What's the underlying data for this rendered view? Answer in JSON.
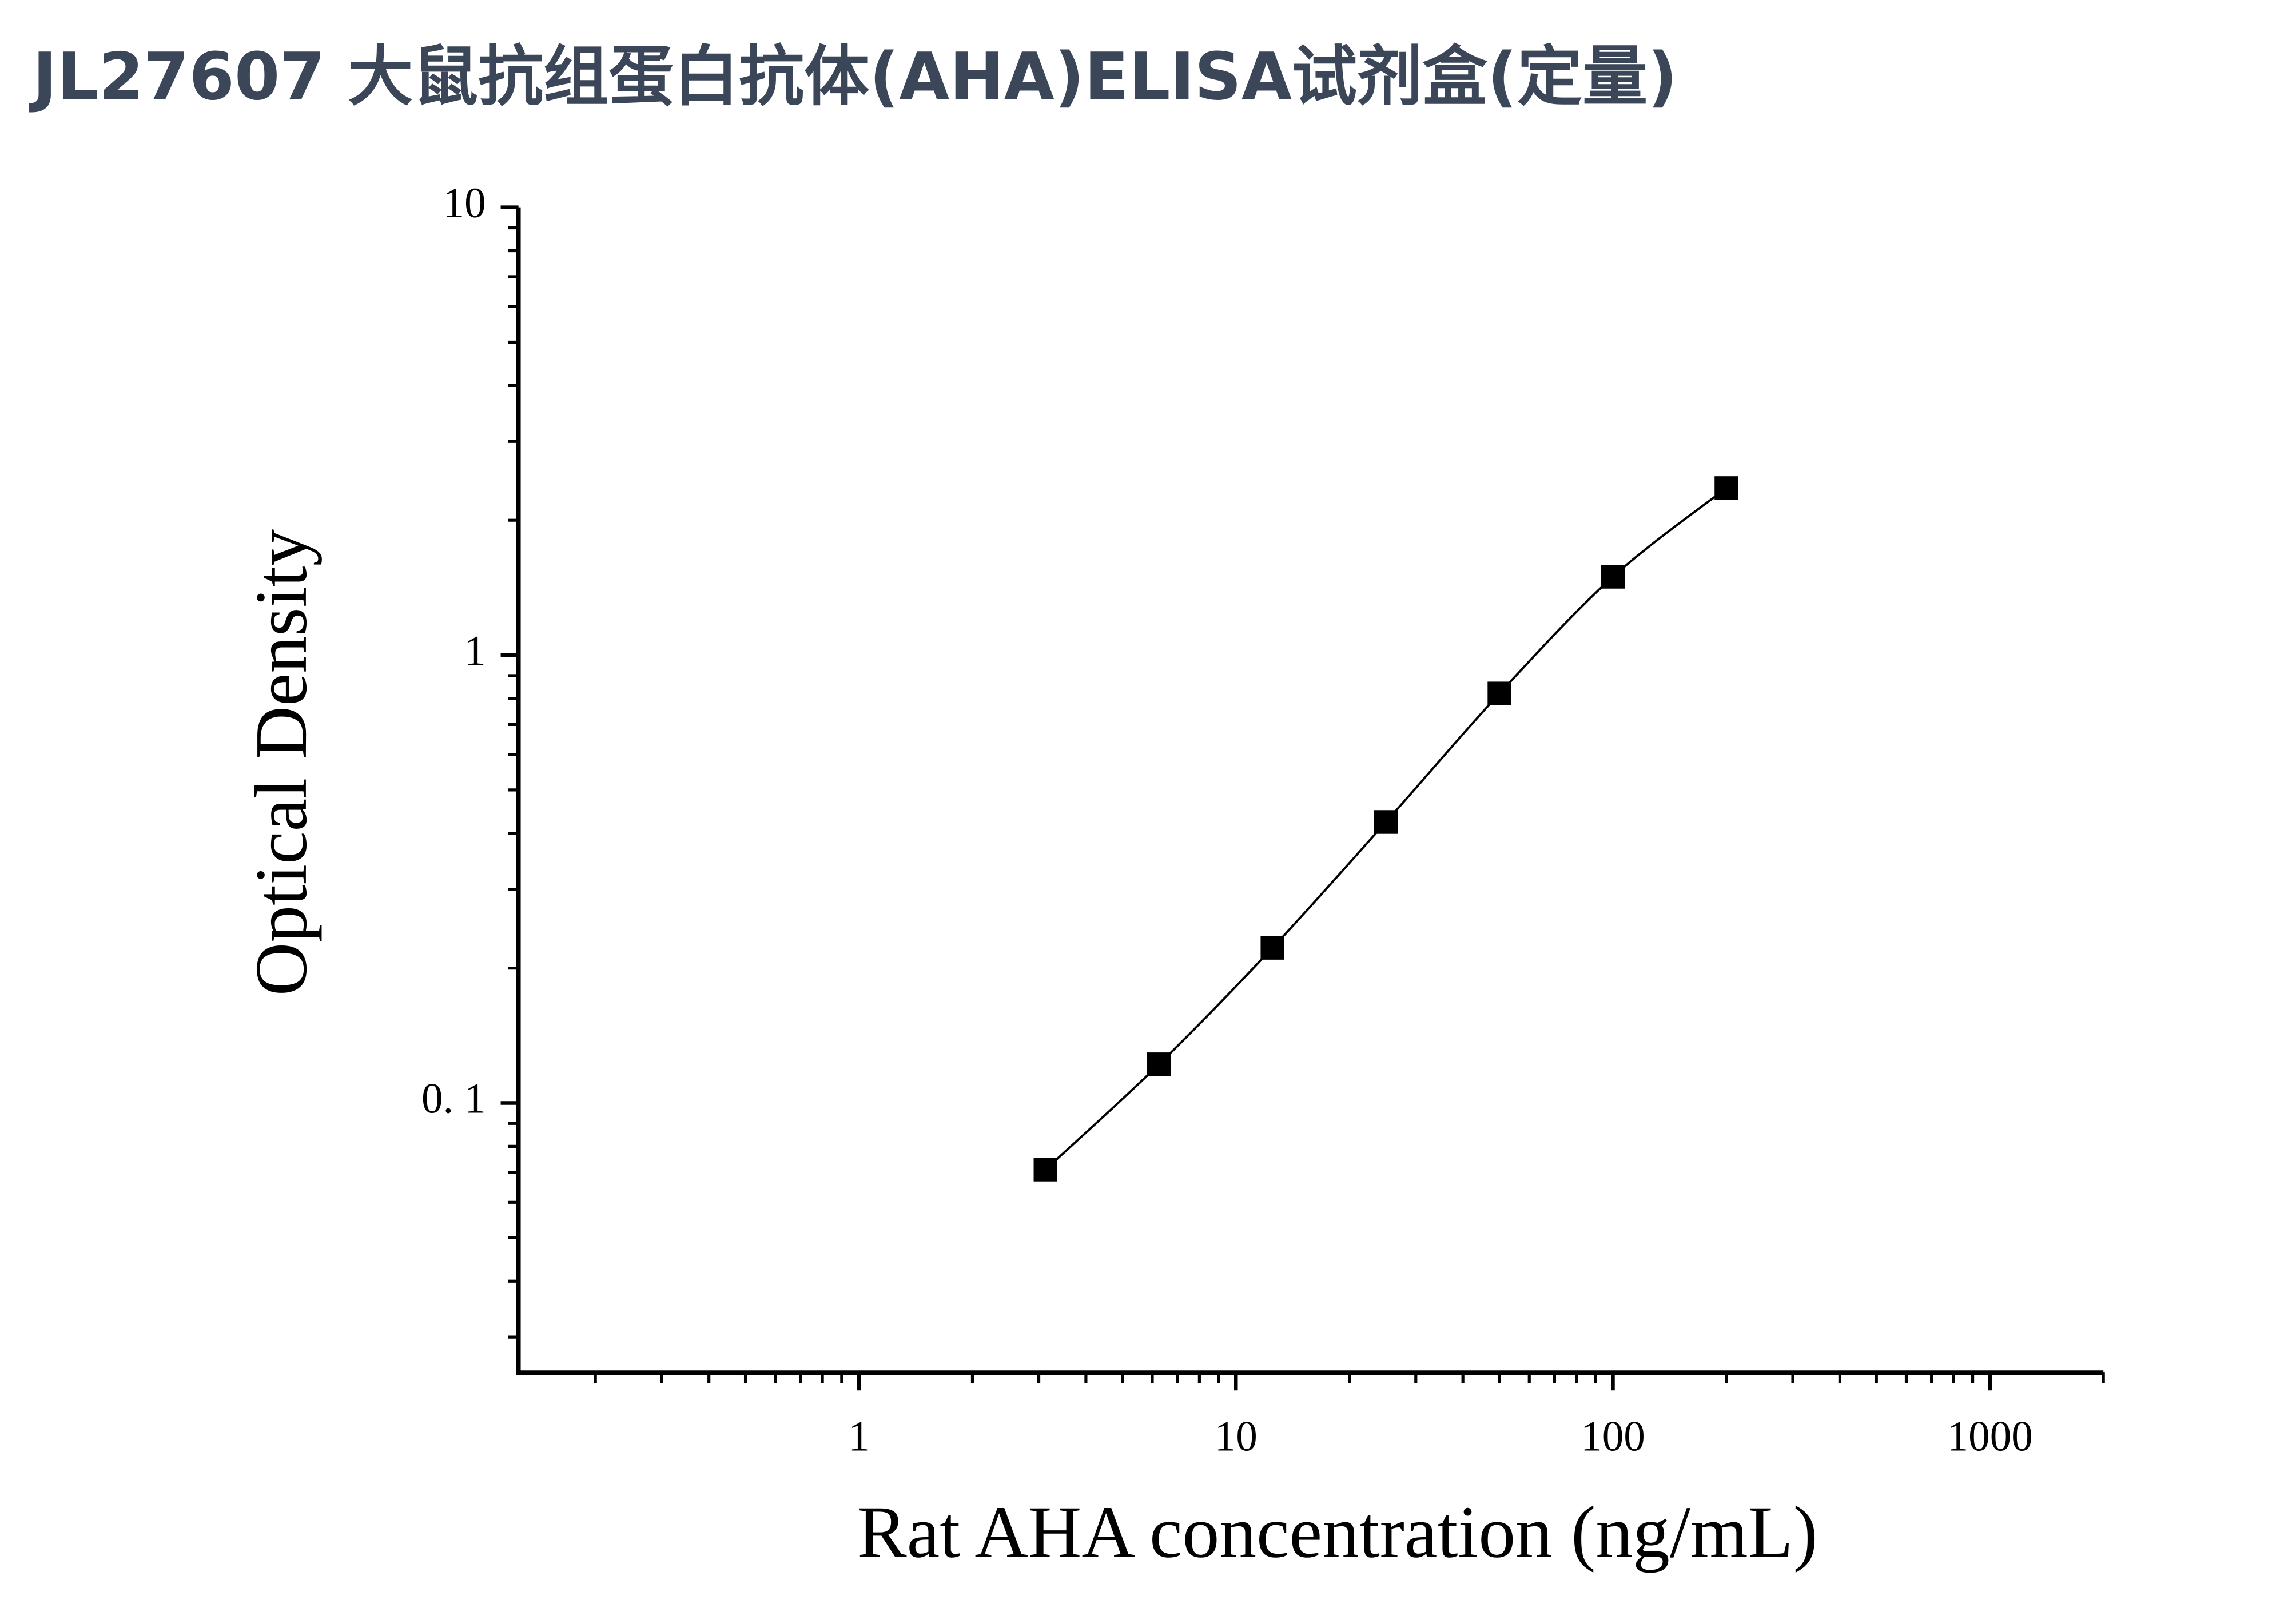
{
  "chart_data": {
    "type": "line",
    "title": "JL27607 大鼠抗组蛋白抗体(AHA)ELISA试剂盒(定量)",
    "xlabel": "Rat AHA concentration (ng/mL)",
    "ylabel": "Optical Density",
    "x": [
      3.125,
      6.25,
      12.5,
      25,
      50,
      100,
      200
    ],
    "series": [
      {
        "color": "#000000",
        "values": [
          0.071,
          0.122,
          0.222,
          0.424,
          0.821,
          1.496,
          2.36
        ]
      }
    ],
    "xscale": "log",
    "yscale": "log",
    "xlim": [
      0.125,
      2000
    ],
    "ylim": [
      0.025,
      10
    ],
    "xticks": [
      1,
      10,
      100,
      1000
    ],
    "yticks": [
      {
        "value": 0.1,
        "label": "0. 1"
      },
      1,
      10
    ],
    "xminorticks": [
      0.2,
      0.3,
      0.4,
      0.5,
      0.6,
      0.7,
      0.8,
      0.9,
      2,
      3,
      4,
      5,
      6,
      7,
      8,
      9,
      20,
      30,
      40,
      50,
      60,
      70,
      80,
      90,
      200,
      300,
      400,
      500,
      600,
      700,
      800,
      900,
      2000
    ],
    "yminorticks": [
      0.03,
      0.04,
      0.05,
      0.06,
      0.07,
      0.08,
      0.09,
      0.2,
      0.3,
      0.4,
      0.5,
      0.6,
      0.7,
      0.8,
      0.9,
      2,
      3,
      4,
      5,
      6,
      7,
      8,
      9
    ],
    "grid": false
  }
}
